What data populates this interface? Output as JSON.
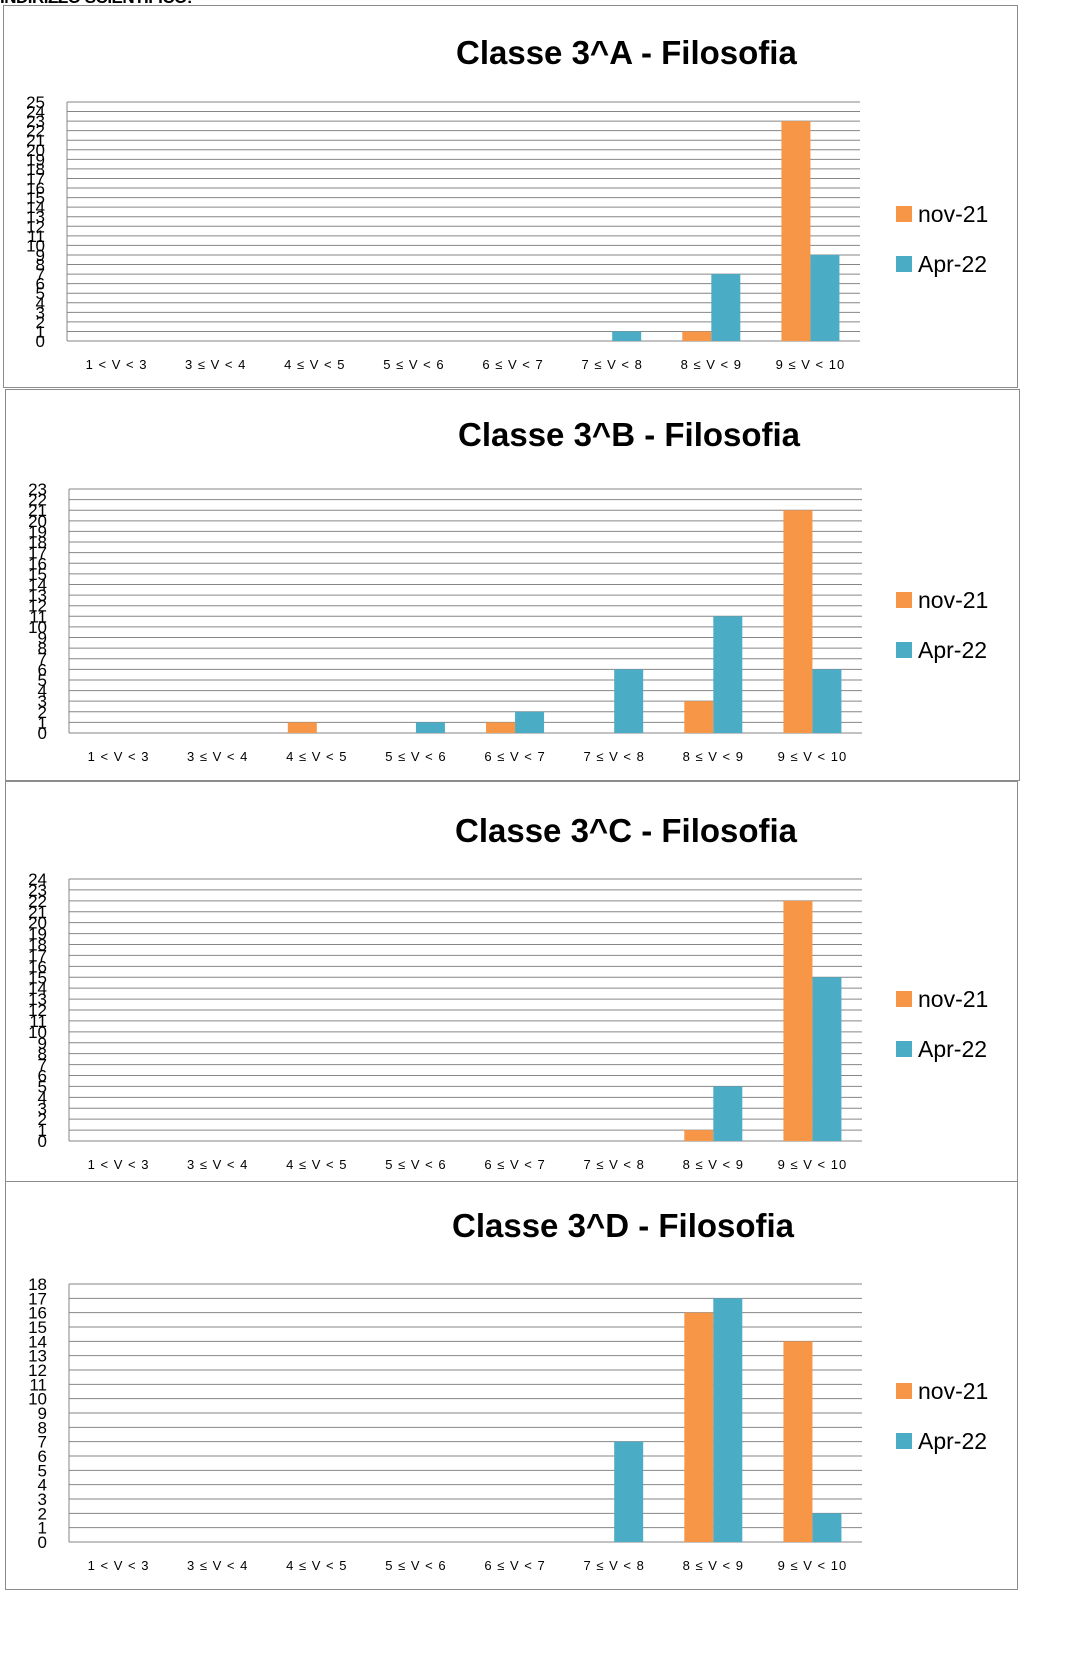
{
  "page": {
    "header_text": "INDIRIZZO SCIENTIFICO:"
  },
  "colors": {
    "nov": "#F79646",
    "apr": "#4BACC6",
    "grid": "#868686"
  },
  "chart_data": [
    {
      "type": "bar",
      "title": "Classe 3^A - Filosofia",
      "categories": [
        "1 < V < 3",
        "3 ≤ V < 4",
        "4 ≤ V < 5",
        "5 ≤ V < 6",
        "6 ≤ V < 7",
        "7 ≤ V < 8",
        "8 ≤ V < 9",
        "9 ≤ V < 10"
      ],
      "series": [
        {
          "name": "nov-21",
          "values": [
            0,
            0,
            0,
            0,
            0,
            0,
            1,
            23
          ]
        },
        {
          "name": "Apr-22",
          "values": [
            0,
            0,
            0,
            0,
            0,
            1,
            7,
            9
          ]
        }
      ],
      "ylim": [
        0,
        25
      ],
      "legend": "right",
      "grid": true
    },
    {
      "type": "bar",
      "title": "Classe 3^B - Filosofia",
      "categories": [
        "1 < V < 3",
        "3 ≤ V < 4",
        "4 ≤ V < 5",
        "5 ≤ V < 6",
        "6 ≤ V < 7",
        "7 ≤ V < 8",
        "8 ≤ V < 9",
        "9 ≤ V < 10"
      ],
      "series": [
        {
          "name": "nov-21",
          "values": [
            0,
            0,
            1,
            0,
            1,
            0,
            3,
            21
          ]
        },
        {
          "name": "Apr-22",
          "values": [
            0,
            0,
            0,
            1,
            2,
            6,
            11,
            6
          ]
        }
      ],
      "ylim": [
        0,
        23
      ],
      "legend": "right",
      "grid": true
    },
    {
      "type": "bar",
      "title": "Classe 3^C - Filosofia",
      "categories": [
        "1 < V < 3",
        "3 ≤ V < 4",
        "4 ≤ V < 5",
        "5 ≤ V < 6",
        "6 ≤ V < 7",
        "7 ≤ V < 8",
        "8 ≤ V < 9",
        "9 ≤ V < 10"
      ],
      "series": [
        {
          "name": "nov-21",
          "values": [
            0,
            0,
            0,
            0,
            0,
            0,
            1,
            22
          ]
        },
        {
          "name": "Apr-22",
          "values": [
            0,
            0,
            0,
            0,
            0,
            0,
            5,
            15
          ]
        }
      ],
      "ylim": [
        0,
        24
      ],
      "legend": "right",
      "grid": true
    },
    {
      "type": "bar",
      "title": "Classe 3^D - Filosofia",
      "categories": [
        "1 < V < 3",
        "3 ≤ V < 4",
        "4 ≤ V < 5",
        "5 ≤ V < 6",
        "6 ≤ V < 7",
        "7 ≤ V < 8",
        "8 ≤ V < 9",
        "9 ≤ V < 10"
      ],
      "series": [
        {
          "name": "nov-21",
          "values": [
            0,
            0,
            0,
            0,
            0,
            0,
            16,
            14
          ]
        },
        {
          "name": "Apr-22",
          "values": [
            0,
            0,
            0,
            0,
            0,
            7,
            17,
            2
          ]
        }
      ],
      "ylim": [
        0,
        18
      ],
      "legend": "right",
      "grid": true
    }
  ]
}
